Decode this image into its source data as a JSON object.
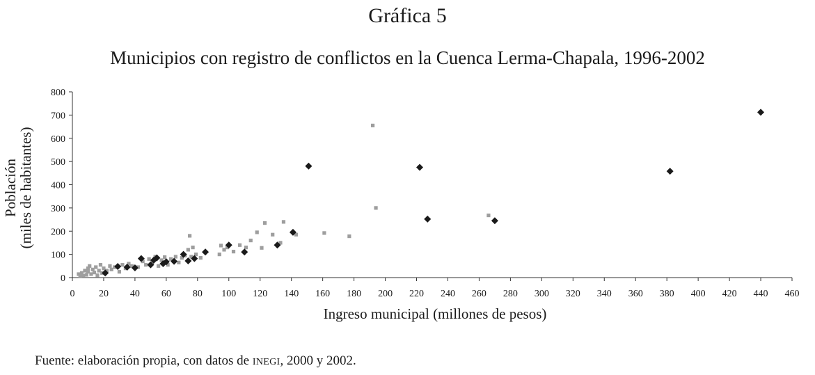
{
  "figure_label": "Gráfica 5",
  "source": {
    "prefix": "Fuente: elaboración propia, con datos de ",
    "agency": "INEGI",
    "suffix": ",  2000 y 2002."
  },
  "colors": {
    "series_1": "#1a1a1a",
    "series_2": "#9e9e9e",
    "axis": "#333333"
  },
  "chart_data": {
    "type": "scatter",
    "title": "Municipios con registro de conflictos en la Cuenca Lerma-Chapala, 1996-2002",
    "xlabel": "Ingreso municipal (millones de pesos)",
    "ylabel": [
      "Población",
      "(miles de habitantes)"
    ],
    "xlim": [
      0,
      460
    ],
    "ylim": [
      0,
      800
    ],
    "xticks": [
      0,
      20,
      40,
      60,
      80,
      100,
      120,
      140,
      160,
      180,
      200,
      220,
      240,
      260,
      280,
      300,
      320,
      340,
      360,
      380,
      400,
      420,
      440,
      460
    ],
    "yticks": [
      0,
      100,
      200,
      300,
      400,
      500,
      600,
      700,
      800
    ],
    "grid": false,
    "legend": "none",
    "series": [
      {
        "marker": "diamond",
        "color": "#1a1a1a",
        "points": [
          [
            21,
            20
          ],
          [
            29,
            48
          ],
          [
            35,
            45
          ],
          [
            40,
            42
          ],
          [
            44,
            82
          ],
          [
            50,
            55
          ],
          [
            52,
            75
          ],
          [
            54,
            85
          ],
          [
            58,
            60
          ],
          [
            60,
            68
          ],
          [
            65,
            70
          ],
          [
            71,
            100
          ],
          [
            74,
            72
          ],
          [
            78,
            82
          ],
          [
            85,
            110
          ],
          [
            100,
            140
          ],
          [
            110,
            110
          ],
          [
            131,
            140
          ],
          [
            141,
            195
          ],
          [
            151,
            480
          ],
          [
            222,
            475
          ],
          [
            227,
            252
          ],
          [
            270,
            245
          ],
          [
            382,
            458
          ],
          [
            440,
            712
          ]
        ]
      },
      {
        "marker": "square",
        "color": "#9e9e9e",
        "points": [
          [
            4,
            15
          ],
          [
            5,
            5
          ],
          [
            6,
            20
          ],
          [
            7,
            8
          ],
          [
            8,
            30
          ],
          [
            9,
            12
          ],
          [
            10,
            40
          ],
          [
            10,
            25
          ],
          [
            11,
            50
          ],
          [
            12,
            15
          ],
          [
            13,
            35
          ],
          [
            14,
            22
          ],
          [
            15,
            45
          ],
          [
            16,
            10
          ],
          [
            17,
            30
          ],
          [
            18,
            55
          ],
          [
            19,
            20
          ],
          [
            20,
            40
          ],
          [
            22,
            30
          ],
          [
            24,
            50
          ],
          [
            25,
            35
          ],
          [
            27,
            45
          ],
          [
            30,
            25
          ],
          [
            32,
            55
          ],
          [
            34,
            40
          ],
          [
            36,
            60
          ],
          [
            38,
            50
          ],
          [
            42,
            45
          ],
          [
            45,
            70
          ],
          [
            47,
            55
          ],
          [
            49,
            80
          ],
          [
            51,
            62
          ],
          [
            53,
            90
          ],
          [
            55,
            50
          ],
          [
            57,
            75
          ],
          [
            59,
            88
          ],
          [
            61,
            55
          ],
          [
            63,
            80
          ],
          [
            66,
            90
          ],
          [
            68,
            65
          ],
          [
            70,
            85
          ],
          [
            72,
            95
          ],
          [
            74,
            120
          ],
          [
            75,
            180
          ],
          [
            76,
            90
          ],
          [
            77,
            130
          ],
          [
            79,
            100
          ],
          [
            82,
            85
          ],
          [
            94,
            100
          ],
          [
            95,
            138
          ],
          [
            97,
            120
          ],
          [
            99,
            130
          ],
          [
            103,
            112
          ],
          [
            107,
            140
          ],
          [
            111,
            130
          ],
          [
            114,
            160
          ],
          [
            118,
            195
          ],
          [
            121,
            128
          ],
          [
            123,
            235
          ],
          [
            128,
            185
          ],
          [
            133,
            150
          ],
          [
            135,
            240
          ],
          [
            143,
            185
          ],
          [
            161,
            192
          ],
          [
            177,
            178
          ],
          [
            192,
            655
          ],
          [
            194,
            300
          ],
          [
            266,
            268
          ]
        ]
      }
    ]
  }
}
